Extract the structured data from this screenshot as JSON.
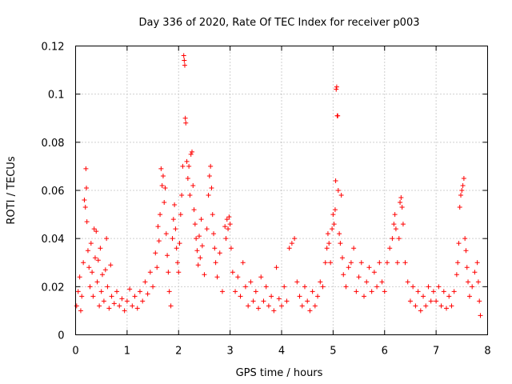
{
  "chart_data": {
    "type": "scatter",
    "title": "Day 336 of 2020, Rate Of TEC Index for receiver p003",
    "xlabel": "GPS time / hours",
    "ylabel": "ROTI / TECUs",
    "xlim": [
      0,
      8
    ],
    "ylim": [
      0,
      0.12
    ],
    "xticks": [
      "0",
      "1",
      "2",
      "3",
      "4",
      "5",
      "6",
      "7",
      "8"
    ],
    "yticks": [
      "0",
      "0.02",
      "0.04",
      "0.06",
      "0.08",
      "0.1",
      "0.12"
    ],
    "grid": true,
    "marker": "+",
    "series": [
      {
        "name": "ROTI",
        "color": "#ff0000",
        "points": [
          [
            0.02,
            0.012
          ],
          [
            0.05,
            0.018
          ],
          [
            0.08,
            0.024
          ],
          [
            0.1,
            0.01
          ],
          [
            0.12,
            0.016
          ],
          [
            0.15,
            0.03
          ],
          [
            0.17,
            0.056
          ],
          [
            0.19,
            0.053
          ],
          [
            0.2,
            0.069
          ],
          [
            0.21,
            0.061
          ],
          [
            0.22,
            0.047
          ],
          [
            0.24,
            0.035
          ],
          [
            0.26,
            0.028
          ],
          [
            0.28,
            0.02
          ],
          [
            0.3,
            0.038
          ],
          [
            0.32,
            0.026
          ],
          [
            0.34,
            0.016
          ],
          [
            0.36,
            0.044
          ],
          [
            0.38,
            0.032
          ],
          [
            0.4,
            0.043
          ],
          [
            0.42,
            0.022
          ],
          [
            0.44,
            0.031
          ],
          [
            0.46,
            0.012
          ],
          [
            0.48,
            0.036
          ],
          [
            0.5,
            0.018
          ],
          [
            0.52,
            0.025
          ],
          [
            0.55,
            0.014
          ],
          [
            0.58,
            0.027
          ],
          [
            0.6,
            0.04
          ],
          [
            0.62,
            0.02
          ],
          [
            0.65,
            0.011
          ],
          [
            0.68,
            0.029
          ],
          [
            0.7,
            0.016
          ],
          [
            0.75,
            0.013
          ],
          [
            0.8,
            0.018
          ],
          [
            0.85,
            0.012
          ],
          [
            0.9,
            0.015
          ],
          [
            0.95,
            0.01
          ],
          [
            1.0,
            0.014
          ],
          [
            1.05,
            0.019
          ],
          [
            1.1,
            0.012
          ],
          [
            1.15,
            0.016
          ],
          [
            1.2,
            0.011
          ],
          [
            1.25,
            0.018
          ],
          [
            1.3,
            0.014
          ],
          [
            1.35,
            0.022
          ],
          [
            1.4,
            0.017
          ],
          [
            1.45,
            0.026
          ],
          [
            1.5,
            0.02
          ],
          [
            1.55,
            0.034
          ],
          [
            1.58,
            0.028
          ],
          [
            1.6,
            0.045
          ],
          [
            1.62,
            0.039
          ],
          [
            1.64,
            0.05
          ],
          [
            1.66,
            0.069
          ],
          [
            1.68,
            0.062
          ],
          [
            1.7,
            0.066
          ],
          [
            1.72,
            0.055
          ],
          [
            1.74,
            0.061
          ],
          [
            1.76,
            0.042
          ],
          [
            1.78,
            0.033
          ],
          [
            1.8,
            0.026
          ],
          [
            1.82,
            0.018
          ],
          [
            1.85,
            0.012
          ],
          [
            1.88,
            0.04
          ],
          [
            1.9,
            0.048
          ],
          [
            1.92,
            0.054
          ],
          [
            1.94,
            0.044
          ],
          [
            1.96,
            0.036
          ],
          [
            1.98,
            0.03
          ],
          [
            2.0,
            0.026
          ],
          [
            2.02,
            0.038
          ],
          [
            2.04,
            0.05
          ],
          [
            2.06,
            0.058
          ],
          [
            2.08,
            0.07
          ],
          [
            2.1,
            0.116
          ],
          [
            2.11,
            0.114
          ],
          [
            2.12,
            0.112
          ],
          [
            2.13,
            0.09
          ],
          [
            2.14,
            0.088
          ],
          [
            2.16,
            0.072
          ],
          [
            2.18,
            0.065
          ],
          [
            2.2,
            0.07
          ],
          [
            2.22,
            0.058
          ],
          [
            2.24,
            0.075
          ],
          [
            2.26,
            0.076
          ],
          [
            2.28,
            0.062
          ],
          [
            2.3,
            0.052
          ],
          [
            2.32,
            0.046
          ],
          [
            2.34,
            0.04
          ],
          [
            2.36,
            0.035
          ],
          [
            2.38,
            0.029
          ],
          [
            2.4,
            0.041
          ],
          [
            2.42,
            0.032
          ],
          [
            2.44,
            0.048
          ],
          [
            2.46,
            0.037
          ],
          [
            2.5,
            0.025
          ],
          [
            2.55,
            0.044
          ],
          [
            2.58,
            0.058
          ],
          [
            2.6,
            0.066
          ],
          [
            2.62,
            0.07
          ],
          [
            2.64,
            0.061
          ],
          [
            2.66,
            0.05
          ],
          [
            2.68,
            0.042
          ],
          [
            2.7,
            0.036
          ],
          [
            2.72,
            0.03
          ],
          [
            2.75,
            0.024
          ],
          [
            2.8,
            0.034
          ],
          [
            2.85,
            0.018
          ],
          [
            2.9,
            0.045
          ],
          [
            2.92,
            0.04
          ],
          [
            2.94,
            0.048
          ],
          [
            2.96,
            0.044
          ],
          [
            2.98,
            0.049
          ],
          [
            3.0,
            0.046
          ],
          [
            3.02,
            0.036
          ],
          [
            3.05,
            0.026
          ],
          [
            3.1,
            0.018
          ],
          [
            3.15,
            0.024
          ],
          [
            3.2,
            0.016
          ],
          [
            3.25,
            0.03
          ],
          [
            3.3,
            0.02
          ],
          [
            3.35,
            0.012
          ],
          [
            3.4,
            0.022
          ],
          [
            3.45,
            0.014
          ],
          [
            3.5,
            0.018
          ],
          [
            3.55,
            0.011
          ],
          [
            3.6,
            0.024
          ],
          [
            3.65,
            0.014
          ],
          [
            3.7,
            0.02
          ],
          [
            3.75,
            0.012
          ],
          [
            3.8,
            0.016
          ],
          [
            3.85,
            0.01
          ],
          [
            3.9,
            0.028
          ],
          [
            3.95,
            0.015
          ],
          [
            4.0,
            0.012
          ],
          [
            4.05,
            0.02
          ],
          [
            4.1,
            0.014
          ],
          [
            4.15,
            0.036
          ],
          [
            4.2,
            0.038
          ],
          [
            4.25,
            0.04
          ],
          [
            4.3,
            0.022
          ],
          [
            4.35,
            0.016
          ],
          [
            4.4,
            0.012
          ],
          [
            4.45,
            0.02
          ],
          [
            4.5,
            0.014
          ],
          [
            4.55,
            0.01
          ],
          [
            4.6,
            0.018
          ],
          [
            4.65,
            0.012
          ],
          [
            4.7,
            0.016
          ],
          [
            4.75,
            0.022
          ],
          [
            4.8,
            0.02
          ],
          [
            4.85,
            0.03
          ],
          [
            4.88,
            0.036
          ],
          [
            4.9,
            0.042
          ],
          [
            4.92,
            0.038
          ],
          [
            4.95,
            0.03
          ],
          [
            4.98,
            0.044
          ],
          [
            5.0,
            0.05
          ],
          [
            5.02,
            0.046
          ],
          [
            5.04,
            0.052
          ],
          [
            5.05,
            0.064
          ],
          [
            5.06,
            0.102
          ],
          [
            5.07,
            0.103
          ],
          [
            5.08,
            0.091
          ],
          [
            5.09,
            0.091
          ],
          [
            5.1,
            0.06
          ],
          [
            5.12,
            0.042
          ],
          [
            5.14,
            0.038
          ],
          [
            5.16,
            0.058
          ],
          [
            5.18,
            0.032
          ],
          [
            5.2,
            0.025
          ],
          [
            5.25,
            0.02
          ],
          [
            5.3,
            0.028
          ],
          [
            5.35,
            0.03
          ],
          [
            5.4,
            0.036
          ],
          [
            5.45,
            0.018
          ],
          [
            5.5,
            0.024
          ],
          [
            5.55,
            0.03
          ],
          [
            5.6,
            0.016
          ],
          [
            5.65,
            0.022
          ],
          [
            5.7,
            0.028
          ],
          [
            5.75,
            0.018
          ],
          [
            5.8,
            0.026
          ],
          [
            5.85,
            0.02
          ],
          [
            5.9,
            0.03
          ],
          [
            5.95,
            0.022
          ],
          [
            6.0,
            0.018
          ],
          [
            6.05,
            0.03
          ],
          [
            6.1,
            0.036
          ],
          [
            6.15,
            0.04
          ],
          [
            6.18,
            0.046
          ],
          [
            6.2,
            0.05
          ],
          [
            6.22,
            0.044
          ],
          [
            6.25,
            0.03
          ],
          [
            6.28,
            0.04
          ],
          [
            6.3,
            0.055
          ],
          [
            6.32,
            0.057
          ],
          [
            6.34,
            0.053
          ],
          [
            6.36,
            0.046
          ],
          [
            6.4,
            0.03
          ],
          [
            6.45,
            0.022
          ],
          [
            6.5,
            0.014
          ],
          [
            6.55,
            0.02
          ],
          [
            6.6,
            0.012
          ],
          [
            6.65,
            0.018
          ],
          [
            6.7,
            0.01
          ],
          [
            6.75,
            0.016
          ],
          [
            6.8,
            0.012
          ],
          [
            6.85,
            0.02
          ],
          [
            6.9,
            0.014
          ],
          [
            6.95,
            0.018
          ],
          [
            7.0,
            0.014
          ],
          [
            7.05,
            0.02
          ],
          [
            7.1,
            0.012
          ],
          [
            7.15,
            0.018
          ],
          [
            7.2,
            0.011
          ],
          [
            7.25,
            0.016
          ],
          [
            7.3,
            0.012
          ],
          [
            7.35,
            0.018
          ],
          [
            7.4,
            0.025
          ],
          [
            7.42,
            0.03
          ],
          [
            7.44,
            0.038
          ],
          [
            7.46,
            0.053
          ],
          [
            7.48,
            0.058
          ],
          [
            7.5,
            0.06
          ],
          [
            7.52,
            0.062
          ],
          [
            7.54,
            0.065
          ],
          [
            7.56,
            0.04
          ],
          [
            7.58,
            0.035
          ],
          [
            7.6,
            0.028
          ],
          [
            7.62,
            0.022
          ],
          [
            7.65,
            0.016
          ],
          [
            7.7,
            0.02
          ],
          [
            7.75,
            0.026
          ],
          [
            7.8,
            0.03
          ],
          [
            7.82,
            0.022
          ],
          [
            7.84,
            0.014
          ],
          [
            7.86,
            0.008
          ]
        ]
      }
    ]
  }
}
